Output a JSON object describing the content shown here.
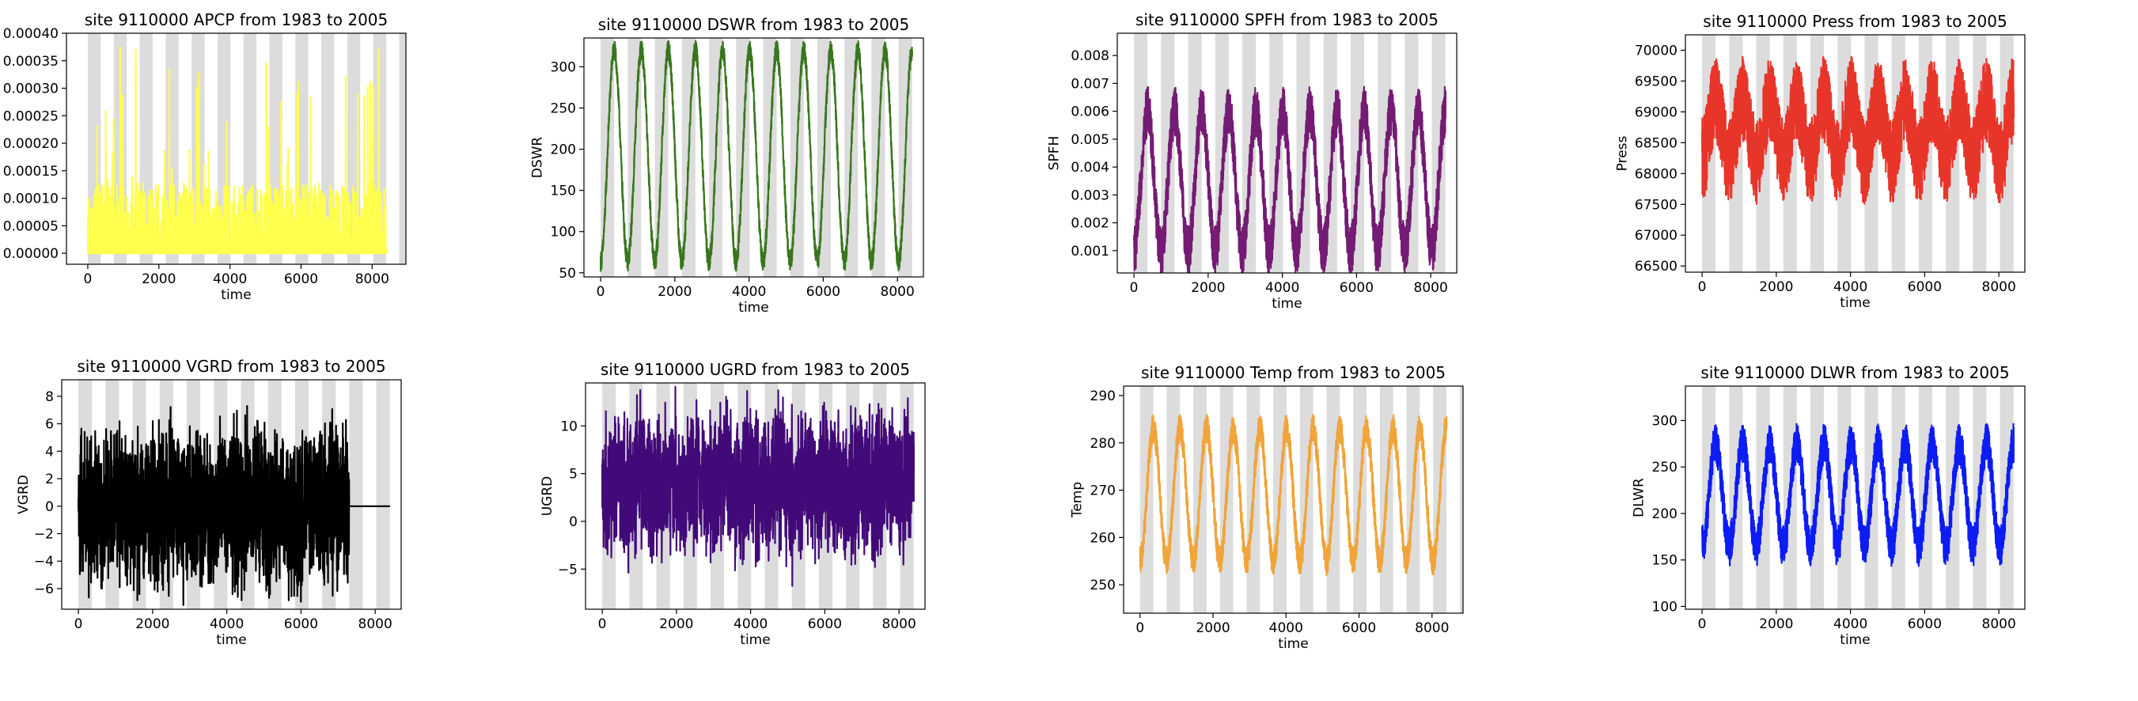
{
  "figure": {
    "background": "#ffffff",
    "band_color": "#dcdcdc"
  },
  "chart_data": [
    {
      "type": "line",
      "title": "site 9110000 APCP from 1983 to 2005",
      "xlabel": "time",
      "ylabel": "",
      "xlim": [
        -600,
        8950
      ],
      "ylim": [
        -2e-05,
        0.0004
      ],
      "xticks": [
        0,
        2000,
        4000,
        6000,
        8000
      ],
      "yticks": [
        0.0,
        5e-05,
        0.0001,
        0.00015,
        0.0002,
        0.00025,
        0.0003,
        0.00035,
        0.0004
      ],
      "ytick_labels": [
        "0.00000",
        "0.00005",
        "0.00010",
        "0.00015",
        "0.00020",
        "0.00025",
        "0.00030",
        "0.00035",
        "0.00040"
      ],
      "bands": true,
      "grid": false,
      "series": [
        {
          "color": "#ffff4d",
          "x_range": [
            0,
            8400
          ],
          "pattern": "spiky",
          "base": 0.0,
          "envelope": 8e-05,
          "spike_max": 0.00038,
          "seasonal_amp": 0.0
        }
      ]
    },
    {
      "type": "line",
      "title": "site 9110000 DSWR from 1983 to 2005",
      "xlabel": "time",
      "ylabel": "DSWR",
      "xlim": [
        -450,
        8700
      ],
      "ylim": [
        45,
        335
      ],
      "xticks": [
        0,
        2000,
        4000,
        6000,
        8000
      ],
      "yticks": [
        50,
        100,
        150,
        200,
        250,
        300
      ],
      "ytick_labels": [
        "50",
        "100",
        "150",
        "200",
        "250",
        "300"
      ],
      "bands": true,
      "grid": false,
      "series": [
        {
          "color": "#38761d",
          "x_range": [
            0,
            8400
          ],
          "pattern": "seasonal",
          "base": 192,
          "seasonal_amp": 128,
          "noise": 12
        }
      ]
    },
    {
      "type": "line",
      "title": "site 9110000 SPFH from 1983 to 2005",
      "xlabel": "time",
      "ylabel": "SPFH",
      "xlim": [
        -450,
        8700
      ],
      "ylim": [
        0.0002,
        0.0088
      ],
      "xticks": [
        0,
        2000,
        4000,
        6000,
        8000
      ],
      "yticks": [
        0.001,
        0.002,
        0.003,
        0.004,
        0.005,
        0.006,
        0.007,
        0.008
      ],
      "ytick_labels": [
        "0.001",
        "0.002",
        "0.003",
        "0.004",
        "0.005",
        "0.006",
        "0.007",
        "0.008"
      ],
      "bands": true,
      "grid": false,
      "series": [
        {
          "color": "#741b73",
          "x_range": [
            0,
            8400
          ],
          "pattern": "seasonal",
          "base": 0.0035,
          "seasonal_amp": 0.0025,
          "noise": 0.0009
        }
      ]
    },
    {
      "type": "line",
      "title": "site 9110000 Press from 1983 to 2005",
      "xlabel": "time",
      "ylabel": "Press",
      "xlim": [
        -450,
        8700
      ],
      "ylim": [
        66400,
        70250
      ],
      "xticks": [
        0,
        2000,
        4000,
        6000,
        8000
      ],
      "yticks": [
        66500,
        67000,
        67500,
        68000,
        68500,
        69000,
        69500,
        70000
      ],
      "ytick_labels": [
        "66500",
        "67000",
        "67500",
        "68000",
        "68500",
        "69000",
        "69500",
        "70000"
      ],
      "bands": true,
      "grid": false,
      "series": [
        {
          "color": "#e8352a",
          "x_range": [
            0,
            8400
          ],
          "pattern": "seasonal",
          "base": 68700,
          "seasonal_amp": 500,
          "noise": 700
        }
      ]
    },
    {
      "type": "line",
      "title": "site 9110000 VGRD from 1983 to 2005",
      "xlabel": "time",
      "ylabel": "VGRD",
      "xlim": [
        -450,
        8700
      ],
      "ylim": [
        -7.5,
        9.2
      ],
      "xticks": [
        0,
        2000,
        4000,
        6000,
        8000
      ],
      "yticks": [
        -6,
        -4,
        -2,
        0,
        2,
        4,
        6,
        8
      ],
      "ytick_labels": [
        "−6",
        "−4",
        "−2",
        "0",
        "2",
        "4",
        "6",
        "8"
      ],
      "bands": true,
      "grid": false,
      "series": [
        {
          "color": "#000000",
          "x_range": [
            0,
            7300
          ],
          "pattern": "noise",
          "base": 0,
          "seasonal_amp": 0.4,
          "noise": 2.6,
          "flat_to": 8400
        }
      ]
    },
    {
      "type": "line",
      "title": "site 9110000 UGRD from 1983 to 2005",
      "xlabel": "time",
      "ylabel": "UGRD",
      "xlim": [
        -450,
        8700
      ],
      "ylim": [
        -9.2,
        14.5
      ],
      "xticks": [
        0,
        2000,
        4000,
        6000,
        8000
      ],
      "yticks": [
        -5,
        0,
        5,
        10
      ],
      "ytick_labels": [
        "−5",
        "0",
        "5",
        "10"
      ],
      "bands": true,
      "grid": false,
      "series": [
        {
          "color": "#420a78",
          "x_range": [
            0,
            8400
          ],
          "pattern": "noise",
          "base": 4,
          "seasonal_amp": 1.0,
          "noise": 3.4
        }
      ]
    },
    {
      "type": "line",
      "title": "site 9110000 Temp from 1983 to 2005",
      "xlabel": "time",
      "ylabel": "Temp",
      "xlim": [
        -450,
        8850
      ],
      "ylim": [
        244,
        292
      ],
      "xticks": [
        0,
        2000,
        4000,
        6000,
        8000
      ],
      "yticks": [
        250,
        260,
        270,
        280,
        290
      ],
      "ytick_labels": [
        "250",
        "260",
        "270",
        "280",
        "290"
      ],
      "bands": true,
      "grid": false,
      "series": [
        {
          "color": "#f0a43a",
          "x_range": [
            0,
            8400
          ],
          "pattern": "seasonal",
          "base": 269,
          "seasonal_amp": 14,
          "noise": 3
        }
      ]
    },
    {
      "type": "line",
      "title": "site 9110000 DLWR from 1983 to 2005",
      "xlabel": "time",
      "ylabel": "DLWR",
      "xlim": [
        -450,
        8700
      ],
      "ylim": [
        97,
        337
      ],
      "xticks": [
        0,
        2000,
        4000,
        6000,
        8000
      ],
      "yticks": [
        100,
        150,
        200,
        250,
        300
      ],
      "ytick_labels": [
        "100",
        "150",
        "200",
        "250",
        "300"
      ],
      "bands": true,
      "grid": false,
      "series": [
        {
          "color": "#0d1cf2",
          "x_range": [
            0,
            8400
          ],
          "pattern": "seasonal",
          "base": 220,
          "seasonal_amp": 55,
          "noise": 22
        }
      ]
    }
  ]
}
